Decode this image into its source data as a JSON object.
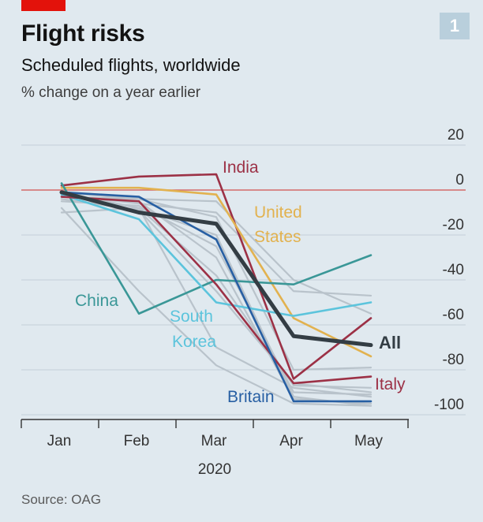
{
  "header": {
    "title": "Flight risks",
    "subtitle": "Scheduled flights, worldwide",
    "unit": "% change on a year earlier",
    "badge": "1"
  },
  "source": "Source: OAG",
  "colors": {
    "background": "#e0e9ef",
    "gridline": "#c3cfd8",
    "zero_line": "#d46a6a",
    "tag": "#e3120b",
    "All": "#333d44",
    "India": "#9c3146",
    "United States": "#e2b24f",
    "China": "#3a9797",
    "South Korea": "#5cc4dc",
    "Italy": "#9c3146",
    "Britain": "#275fa3",
    "other": "#b9c3cb"
  },
  "chart_data": {
    "type": "line",
    "x": [
      "Jan",
      "Feb",
      "Mar",
      "Apr",
      "May"
    ],
    "x_group_label": "2020",
    "ylim": [
      -100,
      20
    ],
    "yticks": [
      20,
      0,
      -20,
      -40,
      -60,
      -80,
      -100
    ],
    "grid": true,
    "series": [
      {
        "name": "India",
        "values": [
          2,
          6,
          7,
          -84,
          -57
        ],
        "color": "India"
      },
      {
        "name": "United States",
        "values": [
          1,
          1,
          -2,
          -57,
          -74
        ],
        "color": "United States"
      },
      {
        "name": "China",
        "values": [
          3,
          -55,
          -40,
          -42,
          -29
        ],
        "color": "China"
      },
      {
        "name": "South Korea",
        "values": [
          -2,
          -13,
          -50,
          -56,
          -50
        ],
        "color": "South Korea"
      },
      {
        "name": "Italy",
        "values": [
          -3,
          -5,
          -42,
          -86,
          -83
        ],
        "color": "Italy"
      },
      {
        "name": "Britain",
        "values": [
          -1,
          -3,
          -22,
          -94,
          -94
        ],
        "color": "Britain"
      },
      {
        "name": "All",
        "values": [
          -1,
          -10,
          -15,
          -65,
          -69
        ],
        "color": "All"
      }
    ],
    "other_series": [
      [
        -1,
        -8,
        -20,
        -92,
        -96
      ],
      [
        -3,
        -5,
        -30,
        -93,
        -95
      ],
      [
        -2,
        -8,
        -38,
        -87,
        -88
      ],
      [
        -4,
        -9,
        -45,
        -86,
        -90
      ],
      [
        -2,
        -6,
        -10,
        -45,
        -47
      ],
      [
        -3,
        -4,
        -5,
        -40,
        -55
      ],
      [
        -8,
        -45,
        -78,
        -95,
        -96
      ],
      [
        -10,
        -8,
        -70,
        -88,
        -92
      ],
      [
        -5,
        -7,
        -25,
        -90,
        -91
      ],
      [
        -1,
        -4,
        -12,
        -80,
        -79
      ]
    ],
    "labels": [
      {
        "text": "India",
        "series": "India"
      },
      {
        "text": "United",
        "series": "United States"
      },
      {
        "text": "States",
        "series": "United States"
      },
      {
        "text": "China",
        "series": "China"
      },
      {
        "text": "South",
        "series": "South Korea"
      },
      {
        "text": "Korea",
        "series": "South Korea"
      },
      {
        "text": "Italy",
        "series": "Italy"
      },
      {
        "text": "Britain",
        "series": "Britain"
      },
      {
        "text": "All",
        "series": "All"
      }
    ]
  }
}
